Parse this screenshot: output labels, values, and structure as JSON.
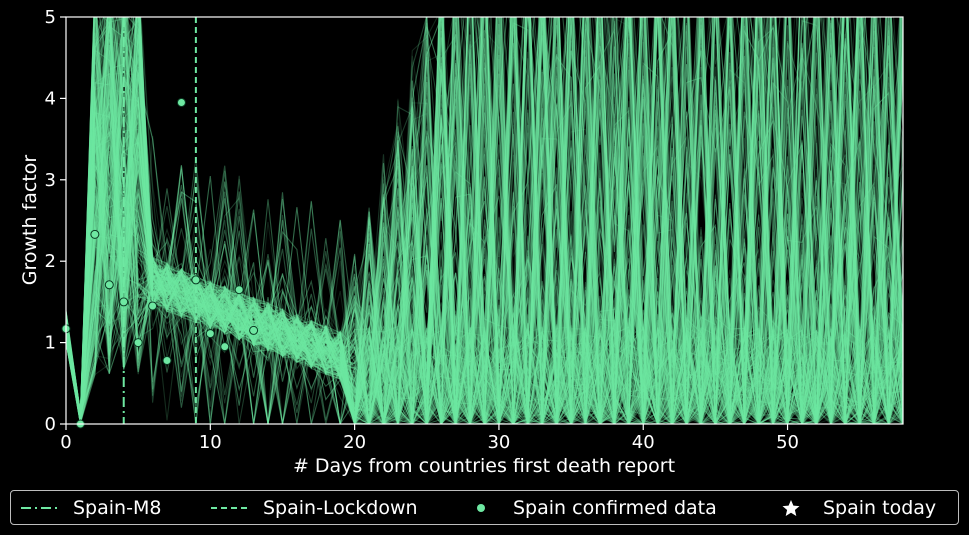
{
  "chart_data": {
    "type": "line",
    "title": "",
    "xlabel": "# Days from countries first death report",
    "ylabel": "Growth factor",
    "xlim": [
      0,
      58
    ],
    "ylim": [
      0,
      5
    ],
    "xticks": [
      0,
      10,
      20,
      30,
      40,
      50
    ],
    "yticks": [
      0,
      1,
      2,
      3,
      4,
      5
    ],
    "grid": false,
    "line_color": "#6ee8a2",
    "background": "#000000",
    "series_description": "Hundreds of semi-transparent simulated growth-factor trajectories",
    "vertical_lines": [
      {
        "name": "Spain-M8",
        "x": 4,
        "style": "dashdot"
      },
      {
        "name": "Spain-Lockdown",
        "x": 9,
        "style": "dashed"
      }
    ],
    "confirmed_data": {
      "name": "Spain confirmed data",
      "x": [
        0,
        1,
        2,
        3,
        4,
        5,
        6,
        7,
        8,
        9,
        10,
        11,
        12,
        13
      ],
      "y": [
        1.17,
        0.0,
        2.33,
        1.71,
        1.5,
        1.0,
        1.45,
        0.78,
        3.95,
        1.77,
        1.11,
        0.95,
        1.65,
        1.15
      ]
    },
    "today": {
      "name": "Spain today"
    },
    "legend": {
      "position": "bottom",
      "entries": [
        {
          "label": "Spain-M8",
          "marker": "dashdot-line"
        },
        {
          "label": "Spain-Lockdown",
          "marker": "dashed-line"
        },
        {
          "label": "Spain confirmed data",
          "marker": "dot"
        },
        {
          "label": "Spain today",
          "marker": "star"
        }
      ]
    }
  }
}
